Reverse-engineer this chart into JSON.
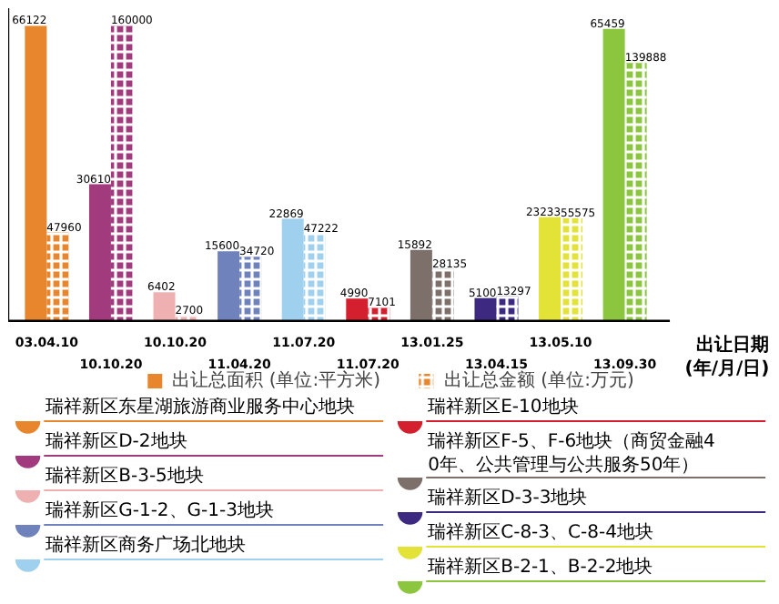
{
  "chart_data": {
    "type": "bar",
    "xlabel": "出让日期\n(年/月/日)",
    "legend": "bottom",
    "data_labels": true,
    "categories": [
      "03.04.10",
      "10.10.20",
      "10.10.20",
      "11.04.20",
      "11.07.20",
      "11.07.20",
      "13.01.25",
      "13.04.15",
      "13.05.10",
      "13.09.30"
    ],
    "series": [
      {
        "name": "出让总面积 (单位:平方米)",
        "colors": [
          "#e8862e",
          "#a23b7e",
          "#eeb0b0",
          "#7082bc",
          "#9fd0ee",
          "#d4202e",
          "#7d706b",
          "#3d2a80",
          "#e3e236",
          "#8cc63f"
        ],
        "values": [
          66122,
          30610,
          6402,
          15600,
          22869,
          4990,
          15892,
          5100,
          23233,
          65459
        ]
      },
      {
        "name": "出让总金额 (单位:万元)",
        "axis": "y2",
        "colors": [
          "#e8862e",
          "#a23b7e",
          "#eeb0b0",
          "#7082bc",
          "#9fd0ee",
          "#d4202e",
          "#7d706b",
          "#3d2a80",
          "#e3e236",
          "#8cc63f"
        ],
        "values": [
          47960,
          160000,
          2700,
          34720,
          47222,
          7101,
          28135,
          13297,
          55575,
          139888
        ]
      }
    ],
    "annotations": [
      "瑞祥新区东星湖旅游商业服务中心地块",
      "瑞祥新区D-2地块",
      "瑞祥新区B-3-5地块",
      "瑞祥新区G-1-2、G-1-3地块",
      "瑞祥新区商务广场北地块",
      "瑞祥新区E-10地块",
      "瑞祥新区F-5、F-6地块（商贸金融40年、公共管理与公共服务50年）",
      "瑞祥新区D-3-3地块",
      "瑞祥新区C-8-3、C-8-4地块",
      "瑞祥新区B-2-1、B-2-2地块"
    ]
  }
}
